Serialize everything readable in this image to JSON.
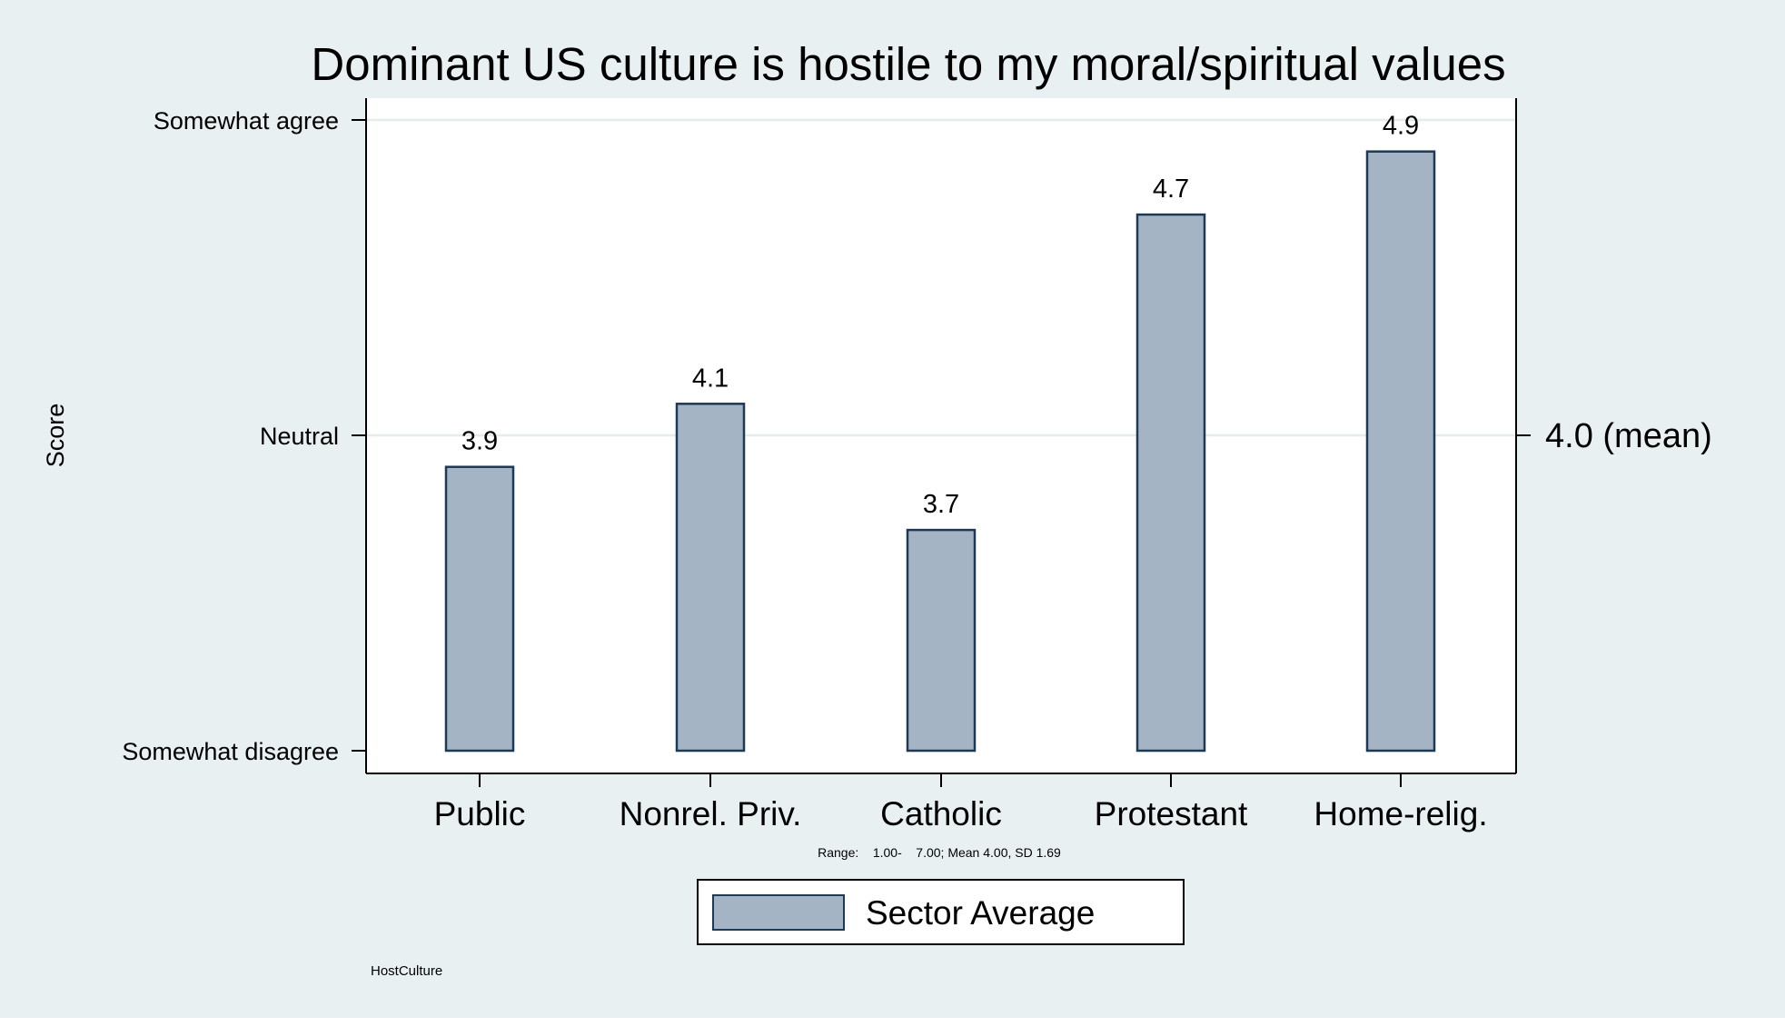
{
  "chart_data": {
    "type": "bar",
    "title": "Dominant US culture is hostile to my moral/spiritual values",
    "ylabel": "Score",
    "xlabel": "",
    "categories": [
      "Public",
      "Nonrel. Priv.",
      "Catholic",
      "Protestant",
      "Home-relig."
    ],
    "series": [
      {
        "name": "Sector Average",
        "values": [
          3.9,
          4.1,
          3.7,
          4.7,
          4.9
        ]
      }
    ],
    "data_labels": [
      "3.9",
      "4.1",
      "3.7",
      "4.7",
      "4.9"
    ],
    "ylim": [
      3.0,
      5.0
    ],
    "y_ticks": [
      {
        "value": 5,
        "label": "Somewhat agree"
      },
      {
        "value": 4,
        "label": "Neutral"
      },
      {
        "value": 3,
        "label": "Somewhat disagree"
      }
    ],
    "right_axis": {
      "value": 4.0,
      "label": "4.0 (mean)"
    },
    "note": "Range:    1.00-    7.00; Mean 4.00, SD 1.69",
    "caption": "HostCulture",
    "grid": "horizontal at y ticks",
    "legend_position": "bottom-center",
    "colors": {
      "background": "#e8f0f2",
      "plot_bg": "#ffffff",
      "bar_fill": "#a5b4c4",
      "bar_stroke": "#1c3a57",
      "grid": "#e4ecee"
    }
  }
}
